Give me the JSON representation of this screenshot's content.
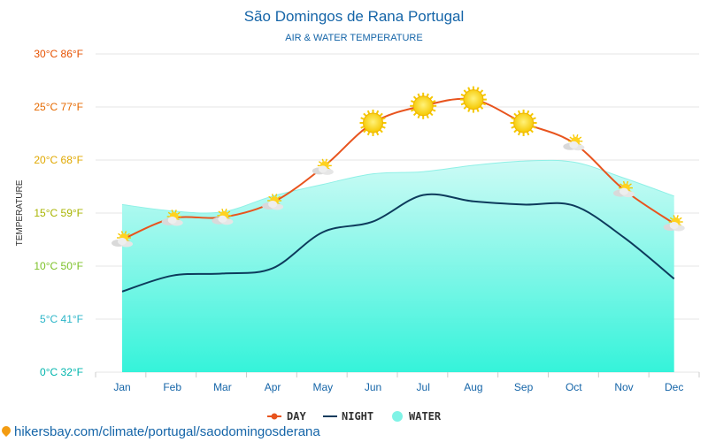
{
  "chart_data": {
    "type": "line",
    "title": "São Domingos de Rana Portugal",
    "subtitle": "AIR & WATER TEMPERATURE",
    "ylabel": "TEMPERATURE",
    "categories": [
      "Jan",
      "Feb",
      "Mar",
      "Apr",
      "May",
      "Jun",
      "Jul",
      "Aug",
      "Sep",
      "Oct",
      "Nov",
      "Dec"
    ],
    "y_ticks": [
      {
        "value": 0,
        "label": "0°C 32°F",
        "color": "#00b5ad"
      },
      {
        "value": 5,
        "label": "5°C 41°F",
        "color": "#2bb5c8"
      },
      {
        "value": 10,
        "label": "10°C 50°F",
        "color": "#7cc128"
      },
      {
        "value": 15,
        "label": "15°C 59°F",
        "color": "#a8b400"
      },
      {
        "value": 20,
        "label": "20°C 68°F",
        "color": "#e0a800"
      },
      {
        "value": 25,
        "label": "25°C 77°F",
        "color": "#e66a00"
      },
      {
        "value": 30,
        "label": "30°C 86°F",
        "color": "#e65100"
      }
    ],
    "ylim": [
      0,
      30
    ],
    "grid": true,
    "legend_position": "bottom-center",
    "series": [
      {
        "name": "DAY",
        "color": "#e8541e",
        "values": [
          12.5,
          14.5,
          14.6,
          16.0,
          19.3,
          23.5,
          25.1,
          25.7,
          23.5,
          21.6,
          17.2,
          14.0
        ]
      },
      {
        "name": "NIGHT",
        "color": "#0d3b5c",
        "values": [
          7.6,
          9.1,
          9.3,
          9.8,
          13.2,
          14.2,
          16.7,
          16.1,
          15.8,
          15.7,
          12.7,
          8.8
        ]
      },
      {
        "name": "WATER",
        "color": "#7ff3e6",
        "values": [
          15.8,
          15.2,
          15.1,
          16.6,
          17.7,
          18.7,
          18.9,
          19.5,
          19.9,
          19.8,
          18.3,
          16.6
        ]
      }
    ],
    "weather_icons": [
      "partly-cloudy-icon",
      "partly-cloudy-icon",
      "partly-cloudy-icon",
      "partly-cloudy-icon",
      "partly-cloudy-icon",
      "sun-icon",
      "sun-icon",
      "sun-icon",
      "sun-icon",
      "partly-cloudy-icon",
      "partly-cloudy-icon",
      "partly-cloudy-icon"
    ]
  },
  "source": "hikersbay.com/climate/portugal/saodomingosderana"
}
